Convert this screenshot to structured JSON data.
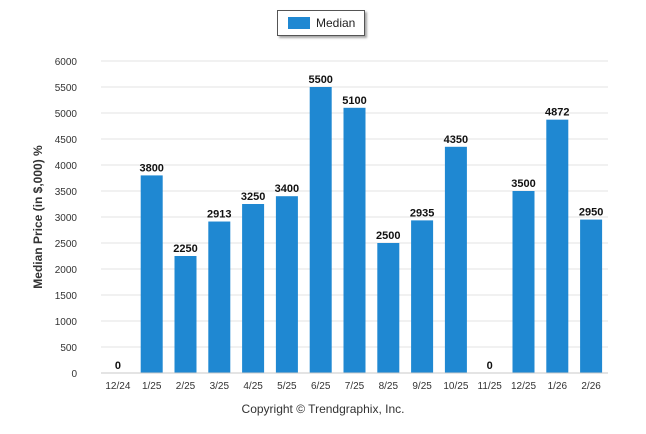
{
  "legend": {
    "label": "Median",
    "color": "#1f88d2"
  },
  "copyright": "Copyright © Trendgraphix, Inc.",
  "chart_data": {
    "type": "bar",
    "ylabel": "Median Price (in $,000) %",
    "xlabel": "",
    "ylim": [
      0,
      6000
    ],
    "yticks": [
      0,
      500,
      1000,
      1500,
      2000,
      2500,
      3000,
      3500,
      4000,
      4500,
      5000,
      5500,
      6000
    ],
    "grid": true,
    "legend_position": "top-center",
    "categories": [
      "12/24",
      "1/25",
      "2/25",
      "3/25",
      "4/25",
      "5/25",
      "6/25",
      "7/25",
      "8/25",
      "9/25",
      "10/25",
      "11/25",
      "12/25",
      "1/26",
      "2/26"
    ],
    "series": [
      {
        "name": "Median",
        "values": [
          0,
          3800,
          2250,
          2913,
          3250,
          3400,
          5500,
          5100,
          2500,
          2935,
          4350,
          0,
          3500,
          4872,
          2950
        ]
      }
    ]
  }
}
